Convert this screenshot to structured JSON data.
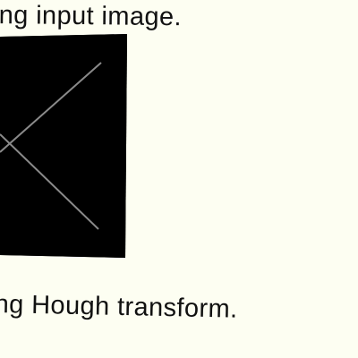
{
  "captions": {
    "top": "ing input image.",
    "bottom": "ng Hough transform."
  },
  "image": {
    "content": "black image with two crossing white lines",
    "background_color": "#000000",
    "line_color": "#8a8a8a"
  },
  "page": {
    "background_color": "#fdfef2",
    "text_color": "#111111"
  }
}
